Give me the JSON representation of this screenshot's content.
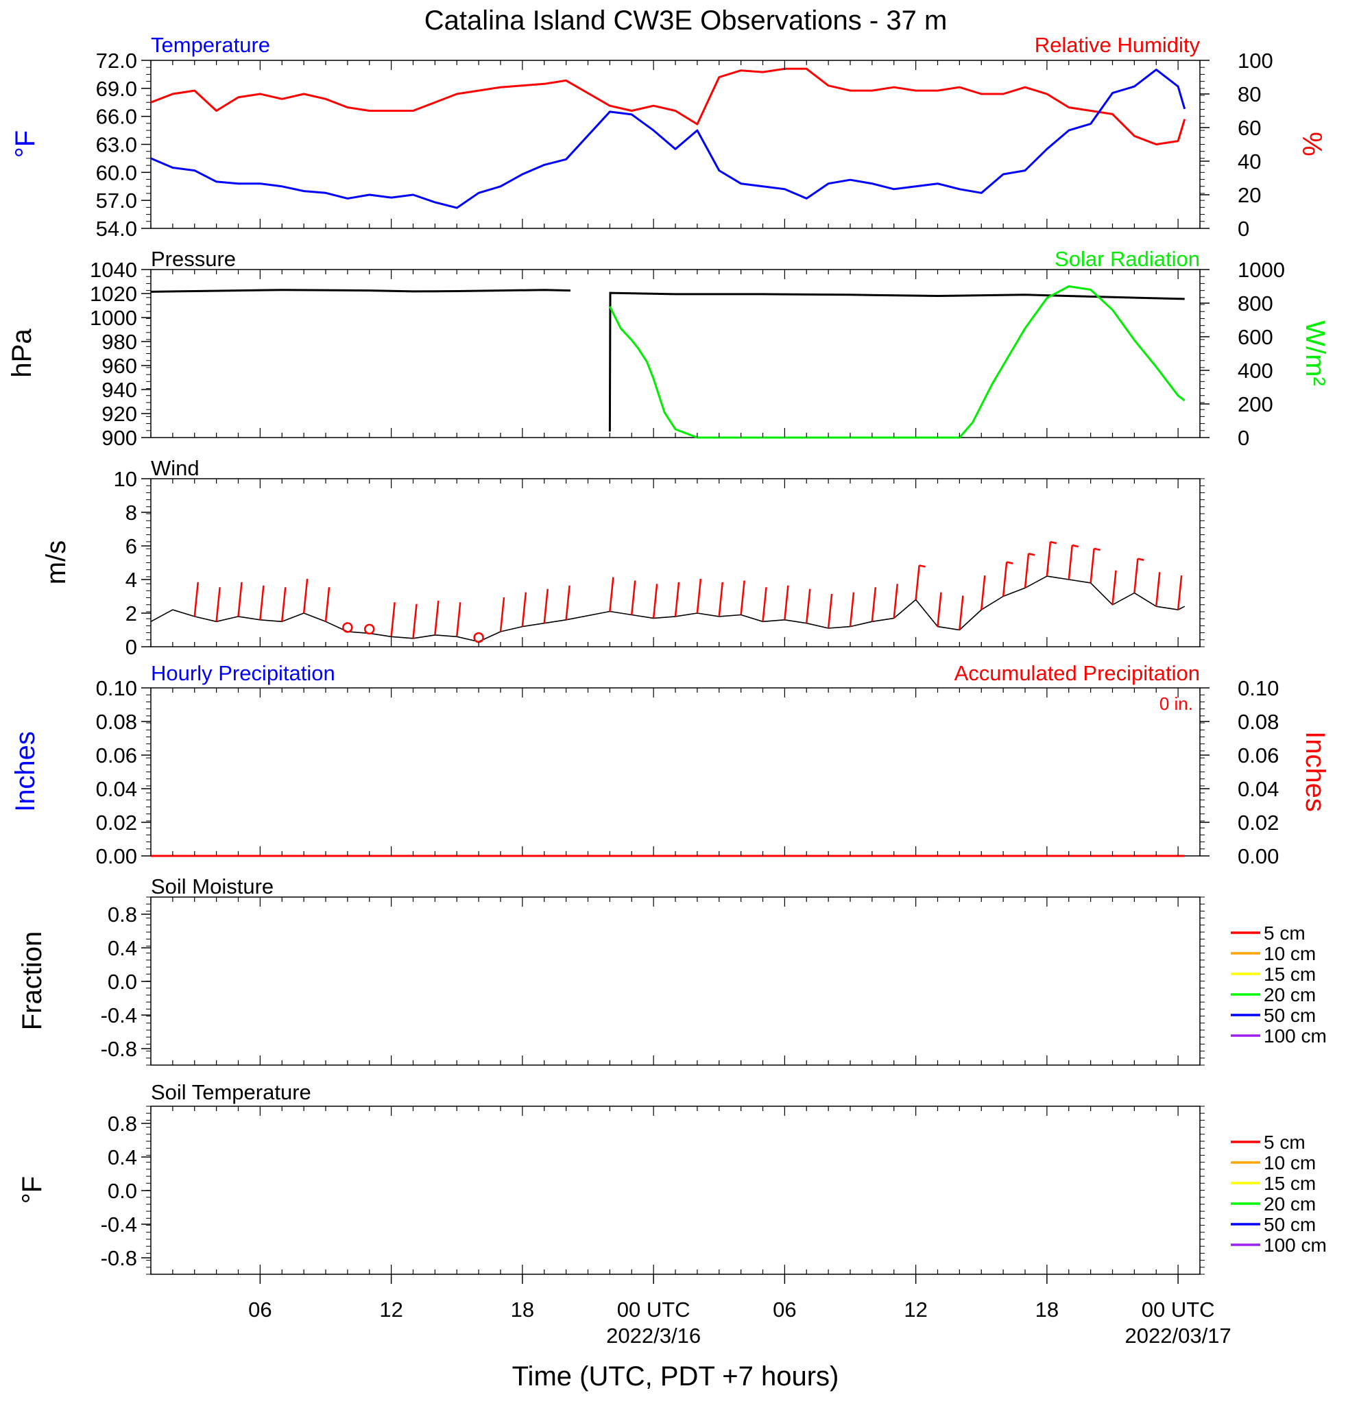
{
  "title": "Catalina Island CW3E Observations - 37 m",
  "xaxis": {
    "label": "Time (UTC, PDT +7 hours)",
    "ticks": [
      {
        "h": 5,
        "label": "06",
        "date": ""
      },
      {
        "h": 11,
        "label": "12",
        "date": ""
      },
      {
        "h": 17,
        "label": "18",
        "date": ""
      },
      {
        "h": 23,
        "label": "00 UTC",
        "date": "2022/3/16"
      },
      {
        "h": 29,
        "label": "06",
        "date": ""
      },
      {
        "h": 35,
        "label": "12",
        "date": ""
      },
      {
        "h": 41,
        "label": "18",
        "date": ""
      },
      {
        "h": 47,
        "label": "00 UTC",
        "date": "2022/03/17"
      }
    ],
    "range_hours": [
      0,
      48
    ]
  },
  "panels": {
    "temp_rh": {
      "left_title": "Temperature",
      "right_title": "Relative Humidity",
      "left_unit": "°F",
      "right_unit": "%",
      "left_ticks": [
        "72.0",
        "69.0",
        "66.0",
        "63.0",
        "60.0",
        "57.0",
        "54.0"
      ],
      "right_ticks": [
        "100",
        "80",
        "60",
        "40",
        "20",
        "0"
      ]
    },
    "pressure_solar": {
      "left_title": "Pressure",
      "right_title": "Solar Radiation",
      "left_unit": "hPa",
      "right_unit": "W/m²",
      "left_ticks": [
        "1040",
        "1020",
        "1000",
        "980",
        "960",
        "940",
        "920",
        "900"
      ],
      "right_ticks": [
        "1000",
        "800",
        "600",
        "400",
        "200",
        "0"
      ]
    },
    "wind": {
      "left_title": "Wind",
      "left_unit": "m/s",
      "left_ticks": [
        "10",
        "8",
        "6",
        "4",
        "2",
        "0"
      ]
    },
    "precip": {
      "left_title": "Hourly Precipitation",
      "right_title": "Accumulated Precipitation",
      "total": "0 in.",
      "left_unit": "Inches",
      "right_unit": "Inches",
      "left_ticks": [
        "0.10",
        "0.08",
        "0.06",
        "0.04",
        "0.02",
        "0.00"
      ],
      "right_ticks": [
        "0.10",
        "0.08",
        "0.06",
        "0.04",
        "0.02",
        "0.00"
      ]
    },
    "soil_moisture": {
      "left_title": "Soil Moisture",
      "left_unit": "Fraction",
      "left_ticks": [
        "0.8",
        "0.4",
        "0.0",
        "-0.4",
        "-0.8"
      ],
      "legend": [
        "5 cm",
        "10 cm",
        "15 cm",
        "20 cm",
        "50 cm",
        "100 cm"
      ]
    },
    "soil_temp": {
      "left_title": "Soil Temperature",
      "left_unit": "°F",
      "left_ticks": [
        "0.8",
        "0.4",
        "0.0",
        "-0.4",
        "-0.8"
      ],
      "legend": [
        "5 cm",
        "10 cm",
        "15 cm",
        "20 cm",
        "50 cm",
        "100 cm"
      ]
    }
  },
  "colors": {
    "temperature": "#0000ff",
    "humidity": "#ff0000",
    "pressure": "#000000",
    "solar": "#00ee00",
    "wind": "#000000",
    "wind_barb": "#ff0000",
    "precip": "#ff0000",
    "legend": [
      "#ff0000",
      "#ffa500",
      "#ffff00",
      "#00ff00",
      "#0000ff",
      "#a020f0"
    ]
  },
  "chart_data": [
    {
      "type": "line",
      "x_unit": "hours since 2022-03-15 01 UTC",
      "gaps": [
        [
          19.2,
          21.0
        ]
      ],
      "ylim_left": [
        54,
        72
      ],
      "ylim_right": [
        0,
        100
      ],
      "series": [
        {
          "name": "Temperature",
          "axis": "left",
          "x": [
            0,
            1,
            2,
            3,
            4,
            5,
            6,
            7,
            8,
            9,
            10,
            11,
            12,
            13,
            14,
            15,
            16,
            17,
            18,
            19,
            21,
            22,
            23,
            24,
            25,
            26,
            27,
            28,
            29,
            30,
            31,
            32,
            33,
            34,
            35,
            36,
            37,
            38,
            39,
            40,
            41,
            42,
            43,
            44,
            45,
            46,
            47,
            47.3
          ],
          "y": [
            61.5,
            60.5,
            60.2,
            59,
            58.8,
            58.8,
            58.5,
            58,
            57.8,
            57.2,
            57.6,
            57.3,
            57.6,
            56.8,
            56.2,
            57.8,
            58.5,
            59.8,
            60.8,
            61.4,
            66.5,
            66.2,
            64.5,
            62.5,
            64.5,
            60.2,
            58.8,
            58.5,
            58.2,
            57.2,
            58.8,
            59.2,
            58.8,
            58.2,
            58.5,
            58.8,
            58.2,
            57.8,
            59.8,
            60.2,
            62.5,
            64.5,
            65.2,
            68.5,
            69.2,
            71.0,
            69.2,
            66.8
          ]
        },
        {
          "name": "Relative Humidity",
          "axis": "right",
          "x": [
            0,
            1,
            2,
            3,
            4,
            5,
            6,
            7,
            8,
            9,
            10,
            11,
            12,
            13,
            14,
            15,
            16,
            17,
            18,
            19,
            21,
            22,
            23,
            24,
            25,
            26,
            27,
            28,
            29,
            30,
            31,
            32,
            33,
            34,
            35,
            36,
            37,
            38,
            39,
            40,
            41,
            42,
            43,
            44,
            45,
            46,
            47,
            47.3
          ],
          "y": [
            75,
            80,
            82,
            70,
            78,
            80,
            77,
            80,
            77,
            72,
            70,
            70,
            70,
            75,
            80,
            82,
            84,
            85,
            86,
            88,
            73,
            70,
            73,
            70,
            62,
            90,
            94,
            93,
            95,
            95,
            85,
            82,
            82,
            84,
            82,
            82,
            84,
            80,
            80,
            84,
            80,
            72,
            70,
            68,
            55,
            50,
            52,
            65
          ]
        }
      ]
    },
    {
      "type": "line",
      "x_unit": "hours since 2022-03-15 01 UTC",
      "ylim_left": [
        900,
        1040
      ],
      "ylim_right": [
        0,
        1000
      ],
      "series": [
        {
          "name": "Pressure",
          "axis": "left",
          "x": [
            0,
            2,
            4,
            6,
            8,
            10,
            12,
            14,
            16,
            18,
            19.2,
            21,
            21.02,
            24,
            28,
            32,
            36,
            40,
            44,
            47.3
          ],
          "y": [
            1021.5,
            1022,
            1022.5,
            1023,
            1022.8,
            1022.5,
            1021.8,
            1022,
            1022.5,
            1023,
            1022.5,
            905,
            1020.5,
            1019.5,
            1019.5,
            1019,
            1018,
            1019,
            1017,
            1015.5
          ]
        },
        {
          "name": "Solar Radiation",
          "axis": "right",
          "x": [
            21,
            21.5,
            22,
            22.3,
            22.7,
            23,
            23.5,
            24,
            25,
            30,
            37,
            37.6,
            38.5,
            40,
            41,
            42,
            43,
            44,
            45,
            46,
            47,
            47.3
          ],
          "y": [
            780,
            650,
            580,
            530,
            450,
            350,
            150,
            50,
            0,
            0,
            0,
            90,
            320,
            650,
            830,
            900,
            880,
            760,
            580,
            420,
            250,
            220
          ]
        }
      ]
    },
    {
      "type": "line",
      "x_unit": "hours since 2022-03-15 01 UTC",
      "ylim": [
        0,
        10
      ],
      "series": [
        {
          "name": "Wind",
          "x": [
            0,
            1,
            2,
            3,
            4,
            5,
            6,
            7,
            8,
            9,
            10,
            11,
            12,
            13,
            14,
            15,
            16,
            17,
            18,
            19,
            21,
            22,
            23,
            24,
            25,
            26,
            27,
            28,
            29,
            30,
            31,
            32,
            33,
            34,
            35,
            36,
            37,
            38,
            39,
            40,
            41,
            42,
            43,
            44,
            45,
            46,
            47,
            47.3
          ],
          "y": [
            1.5,
            2.2,
            1.8,
            1.5,
            1.8,
            1.6,
            1.5,
            2.0,
            1.5,
            0.9,
            0.8,
            0.6,
            0.5,
            0.7,
            0.6,
            0.3,
            0.9,
            1.2,
            1.4,
            1.6,
            2.1,
            1.9,
            1.7,
            1.8,
            2.0,
            1.8,
            1.9,
            1.5,
            1.6,
            1.4,
            1.1,
            1.2,
            1.5,
            1.7,
            2.8,
            1.2,
            1.0,
            2.2,
            3.0,
            3.5,
            4.2,
            4.0,
            3.8,
            2.5,
            3.2,
            2.4,
            2.2,
            2.4
          ]
        }
      ],
      "barb_hours": [
        2,
        3,
        4,
        5,
        6,
        7,
        8,
        9,
        10,
        11,
        12,
        13,
        14,
        15,
        16,
        17,
        18,
        19,
        21,
        22,
        23,
        24,
        25,
        26,
        27,
        28,
        29,
        30,
        31,
        32,
        33,
        34,
        35,
        36,
        37,
        38,
        39,
        40,
        41,
        42,
        43,
        44,
        45,
        46,
        47
      ],
      "calm_hours": [
        9,
        10,
        15
      ]
    },
    {
      "type": "line",
      "x_unit": "hours since 2022-03-15 01 UTC",
      "ylim": [
        0,
        0.1
      ],
      "series": [
        {
          "name": "Accumulated Precipitation",
          "x": [
            0,
            19.2,
            21,
            47.3
          ],
          "y": [
            0,
            0,
            0,
            0
          ]
        }
      ]
    }
  ]
}
